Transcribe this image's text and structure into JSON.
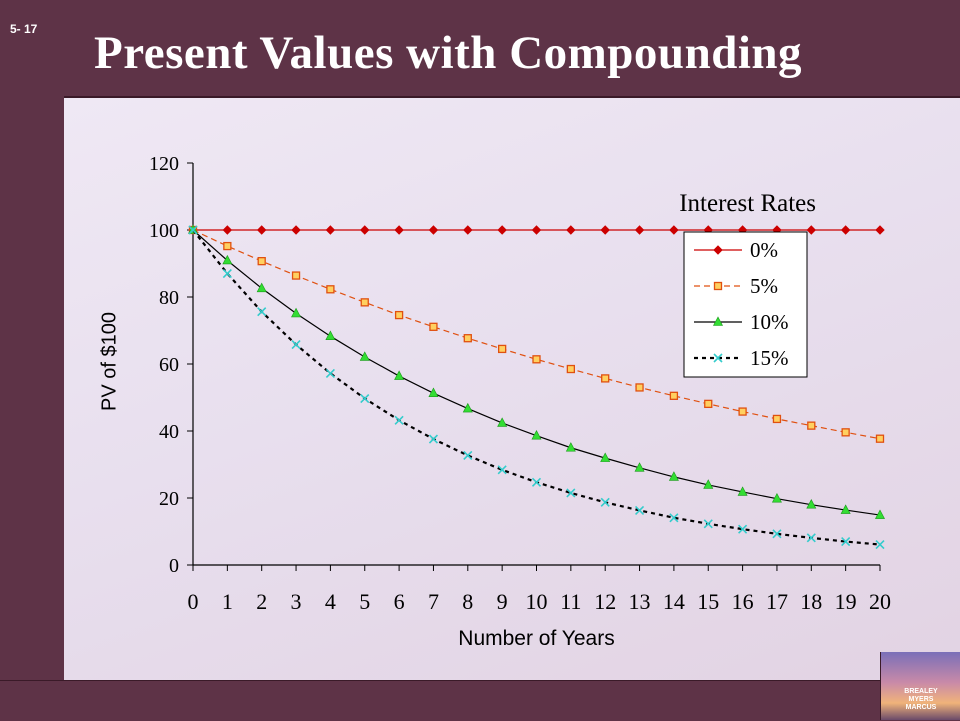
{
  "slide": {
    "number": "5- 17",
    "title": "Present Values with Compounding"
  },
  "logo": {
    "text": "BREALEY\nMYERS\nMARCUS"
  },
  "colors": {
    "frame": "#5e3347",
    "series_0": "#cc0000",
    "series_5": "#e06010",
    "series_10": "#000000",
    "series_15": "#000000"
  },
  "chart_data": {
    "type": "line",
    "xlabel": "Number of Years",
    "ylabel": "PV of $100",
    "legend_title": "Interest Rates",
    "legend_position": "top-right",
    "x": [
      0,
      1,
      2,
      3,
      4,
      5,
      6,
      7,
      8,
      9,
      10,
      11,
      12,
      13,
      14,
      15,
      16,
      17,
      18,
      19,
      20
    ],
    "xlim": [
      0,
      20
    ],
    "ylim": [
      0,
      120
    ],
    "yticks": [
      0,
      20,
      40,
      60,
      80,
      100,
      120
    ],
    "grid": false,
    "series": [
      {
        "name": "0%",
        "values": [
          100,
          100,
          100,
          100,
          100,
          100,
          100,
          100,
          100,
          100,
          100,
          100,
          100,
          100,
          100,
          100,
          100,
          100,
          100,
          100,
          100
        ]
      },
      {
        "name": "5%",
        "values": [
          100,
          95.2,
          90.7,
          86.4,
          82.3,
          78.4,
          74.6,
          71.1,
          67.7,
          64.5,
          61.4,
          58.5,
          55.7,
          53.0,
          50.5,
          48.1,
          45.8,
          43.6,
          41.6,
          39.6,
          37.7
        ]
      },
      {
        "name": "10%",
        "values": [
          100,
          90.9,
          82.6,
          75.1,
          68.3,
          62.1,
          56.4,
          51.3,
          46.7,
          42.4,
          38.6,
          35.0,
          31.9,
          29.0,
          26.3,
          23.9,
          21.8,
          19.8,
          18.0,
          16.4,
          14.9
        ]
      },
      {
        "name": "15%",
        "values": [
          100,
          87.0,
          75.6,
          65.8,
          57.2,
          49.7,
          43.2,
          37.6,
          32.7,
          28.4,
          24.7,
          21.5,
          18.7,
          16.3,
          14.1,
          12.3,
          10.7,
          9.3,
          8.1,
          7.0,
          6.1
        ]
      }
    ]
  }
}
